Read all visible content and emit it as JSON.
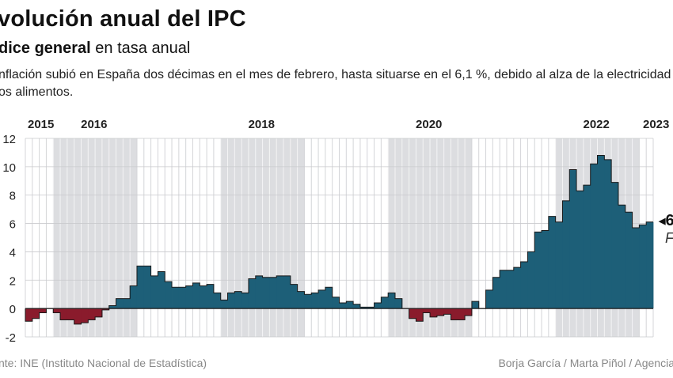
{
  "title": "volución anual del IPC",
  "subtitle_bold": "dice general",
  "subtitle_rest": " en tasa anual",
  "description_line1": "nflación subió en España dos décimas en el mes de febrero, hasta situarse en el 6,1 %, debido al alza de la electricidad",
  "description_line2": "os alimentos.",
  "source": "nte: INE (Instituto Nacional de Estadística)",
  "credit": "Borja García / Marta Piñol / Agencia",
  "annotation_value": "6",
  "annotation_label": "F",
  "colors": {
    "positive": "#1d5f78",
    "negative": "#8a1b2c",
    "band": "#dcdde0"
  },
  "chart_data": {
    "type": "bar",
    "title": "volución anual del IPC",
    "ylim": [
      -2,
      12
    ],
    "yticks": [
      -2,
      0,
      2,
      4,
      6,
      8,
      10,
      12
    ],
    "grid": true,
    "year_labels": [
      {
        "label": "2015",
        "year": 2015
      },
      {
        "label": "2016",
        "year": 2016
      },
      {
        "label": "2018",
        "year": 2018
      },
      {
        "label": "2020",
        "year": 2020
      },
      {
        "label": "2022",
        "year": 2022
      },
      {
        "label": "2023",
        "year": 2023
      }
    ],
    "start": "2015-09",
    "values": [
      -0.9,
      -0.7,
      -0.3,
      0.0,
      -0.3,
      -0.8,
      -0.8,
      -1.1,
      -1.0,
      -0.8,
      -0.6,
      -0.1,
      0.2,
      0.7,
      0.7,
      1.6,
      3.0,
      3.0,
      2.3,
      2.6,
      1.9,
      1.5,
      1.5,
      1.6,
      1.8,
      1.6,
      1.7,
      1.1,
      0.6,
      1.1,
      1.2,
      1.1,
      2.1,
      2.3,
      2.2,
      2.2,
      2.3,
      2.3,
      1.7,
      1.2,
      1.0,
      1.1,
      1.3,
      1.5,
      0.8,
      0.4,
      0.5,
      0.3,
      0.1,
      0.1,
      0.4,
      0.8,
      1.1,
      0.7,
      0.0,
      -0.7,
      -0.9,
      -0.3,
      -0.6,
      -0.5,
      -0.4,
      -0.8,
      -0.8,
      -0.5,
      0.5,
      0.0,
      1.3,
      2.2,
      2.7,
      2.7,
      2.9,
      3.3,
      4.0,
      5.4,
      5.5,
      6.5,
      6.1,
      7.6,
      9.8,
      8.3,
      8.7,
      10.2,
      10.8,
      10.5,
      8.9,
      7.3,
      6.8,
      5.7,
      5.9,
      6.1
    ]
  }
}
